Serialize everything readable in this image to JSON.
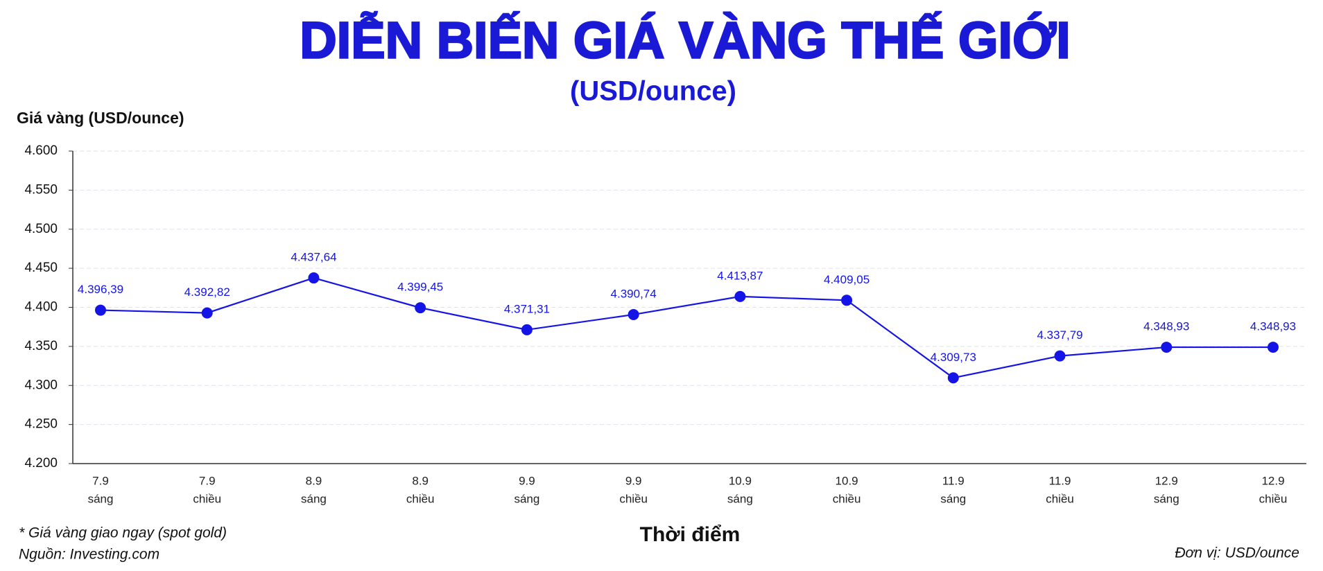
{
  "chart_data": {
    "type": "line",
    "title": "DIỄN BIẾN GIÁ VÀNG THẾ GIỚI",
    "subtitle": "(USD/ounce)",
    "y_label": "Giá vàng (USD/ounce)",
    "x_label": "Thời điểm",
    "notes": [
      "* Giá vàng giao ngay (spot gold)",
      "Nguồn: Investing.com"
    ],
    "unit_note": "Đơn vị: USD/ounce",
    "categories": [
      [
        "7.9",
        "sáng"
      ],
      [
        "7.9",
        "chiều"
      ],
      [
        "8.9",
        "sáng"
      ],
      [
        "8.9",
        "chiều"
      ],
      [
        "9.9",
        "sáng"
      ],
      [
        "9.9",
        "chiều"
      ],
      [
        "10.9",
        "sáng"
      ],
      [
        "10.9",
        "chiều"
      ],
      [
        "11.9",
        "sáng"
      ],
      [
        "11.9",
        "chiều"
      ],
      [
        "12.9",
        "sáng"
      ],
      [
        "12.9",
        "chiều"
      ]
    ],
    "series": [
      {
        "color": "#1414e6",
        "values": [
          4396.39,
          4392.82,
          4437.64,
          4399.45,
          4371.31,
          4390.74,
          4413.87,
          4409.05,
          4309.73,
          4337.79,
          4348.93,
          4348.93
        ],
        "value_labels": [
          "4.396,39",
          "4.392,82",
          "4.437,64",
          "4.399,45",
          "4.371,31",
          "4.390,74",
          "4.413,87",
          "4.409,05",
          "4.309,73",
          "4.337,79",
          "4.348,93",
          "4.348,93"
        ]
      }
    ],
    "ylim": [
      4200,
      4600
    ],
    "yticks": [
      {
        "value": 4200,
        "label": "4.200"
      },
      {
        "value": 4250,
        "label": "4.250"
      },
      {
        "value": 4300,
        "label": "4.300"
      },
      {
        "value": 4350,
        "label": "4.350"
      },
      {
        "value": 4400,
        "label": "4.400"
      },
      {
        "value": 4450,
        "label": "4.450"
      },
      {
        "value": 4500,
        "label": "4.500"
      },
      {
        "value": 4550,
        "label": "4.550"
      },
      {
        "value": 4600,
        "label": "4.600"
      }
    ],
    "grid": true
  }
}
